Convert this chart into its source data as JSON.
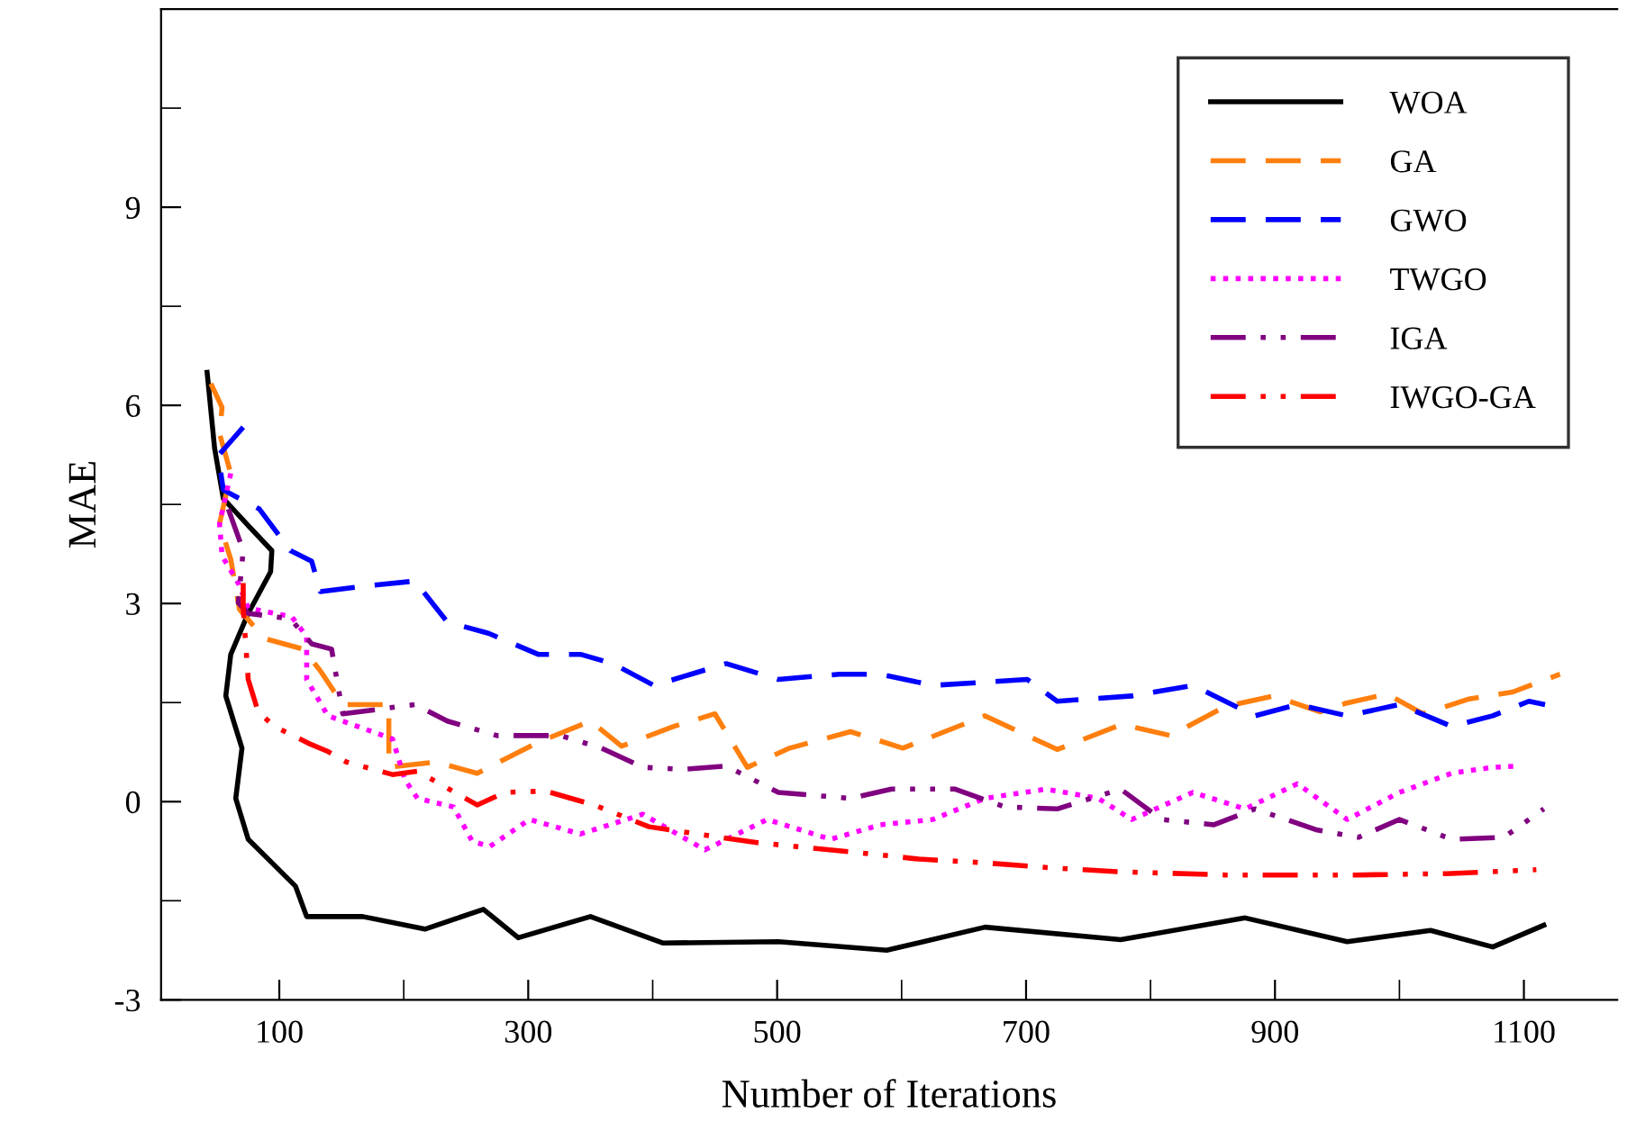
{
  "chart_data": {
    "type": "line",
    "xlabel": "Number of Iterations",
    "ylabel": "MAE",
    "xlim": [
      5,
      1175
    ],
    "ylim": [
      -3,
      12
    ],
    "xticks": [
      100,
      {
        "value": 200,
        "label": null
      },
      300,
      {
        "value": 400,
        "label": null
      },
      500,
      {
        "value": 600,
        "label": null
      },
      700,
      {
        "value": 800,
        "label": null
      },
      900,
      {
        "value": 1000,
        "label": null
      },
      1100
    ],
    "yticks": [
      -3,
      {
        "value": -1.5,
        "label": null
      },
      0,
      {
        "value": 1.5,
        "label": null
      },
      3,
      {
        "value": 4.5,
        "label": null
      },
      6,
      {
        "value": 7.5,
        "label": null
      },
      9,
      {
        "value": 10.5,
        "label": null
      }
    ],
    "grid": false,
    "legend": "top right",
    "marker": "none",
    "series": [
      {
        "name": "WOA",
        "color": "#000000",
        "line_style": "solid",
        "x": [
          42,
          48,
          55,
          75,
          94,
          93,
          75,
          61,
          57,
          70,
          65,
          75,
          97,
          113,
          122,
          167,
          217,
          264,
          292,
          350,
          408,
          501,
          588,
          667,
          776,
          876,
          958,
          1025,
          1075,
          1116
        ],
        "values": [
          6.5,
          5.35,
          4.59,
          4.18,
          3.8,
          3.48,
          2.85,
          2.23,
          1.6,
          0.81,
          0.05,
          -0.57,
          -0.98,
          -1.28,
          -1.74,
          -1.74,
          -1.93,
          -1.63,
          -2.06,
          -1.74,
          -2.14,
          -2.12,
          -2.25,
          -1.9,
          -2.09,
          -1.76,
          -2.12,
          -1.95,
          -2.2,
          -1.87
        ]
      },
      {
        "name": "GA",
        "color": "#ff7f0e",
        "line_style": "dashed",
        "x": [
          45,
          54,
          52,
          61,
          52,
          61,
          68,
          88,
          119,
          133,
          151,
          188,
          188,
          226,
          259,
          308,
          350,
          375,
          417,
          450,
          476,
          510,
          559,
          601,
          667,
          725,
          777,
          816,
          860,
          899,
          936,
          957,
          990,
          1019,
          1055,
          1091,
          1129
        ],
        "values": [
          6.33,
          5.97,
          5.57,
          4.97,
          4.21,
          3.67,
          2.91,
          2.47,
          2.31,
          1.98,
          1.47,
          1.47,
          0.52,
          0.6,
          0.43,
          0.9,
          1.22,
          0.84,
          1.14,
          1.33,
          0.52,
          0.81,
          1.06,
          0.81,
          1.3,
          0.79,
          1.17,
          1.0,
          1.44,
          1.6,
          1.36,
          1.49,
          1.63,
          1.33,
          1.55,
          1.66,
          1.93
        ]
      },
      {
        "name": "GWO",
        "color": "#0000ff",
        "line_style": "dashed",
        "x": [
          71,
          51,
          55,
          84,
          109,
          126,
          133,
          167,
          209,
          235,
          268,
          308,
          342,
          368,
          401,
          459,
          501,
          550,
          583,
          625,
          701,
          725,
          785,
          834,
          884,
          918,
          958,
          1000,
          1042,
          1075,
          1104,
          1117
        ],
        "values": [
          5.67,
          5.24,
          4.72,
          4.43,
          3.8,
          3.64,
          3.18,
          3.26,
          3.34,
          2.72,
          2.55,
          2.23,
          2.23,
          2.09,
          1.76,
          2.09,
          1.85,
          1.93,
          1.93,
          1.76,
          1.85,
          1.52,
          1.6,
          1.76,
          1.3,
          1.47,
          1.3,
          1.47,
          1.14,
          1.3,
          1.52,
          1.47
        ]
      },
      {
        "name": "TWGO",
        "color": "#ff00ff",
        "line_style": "dotted",
        "x": [
          61,
          52,
          54,
          67,
          75,
          110,
          122,
          122,
          139,
          191,
          201,
          211,
          240,
          255,
          269,
          301,
          342,
          392,
          442,
          492,
          543,
          583,
          625,
          667,
          716,
          758,
          785,
          834,
          876,
          918,
          958,
          1000,
          1042,
          1075,
          1096
        ],
        "values": [
          4.97,
          4.21,
          3.72,
          3.31,
          2.93,
          2.8,
          2.5,
          1.85,
          1.3,
          0.95,
          0.33,
          0.05,
          -0.08,
          -0.6,
          -0.68,
          -0.27,
          -0.49,
          -0.19,
          -0.73,
          -0.27,
          -0.57,
          -0.35,
          -0.27,
          0.05,
          0.19,
          0.05,
          -0.27,
          0.14,
          -0.11,
          0.27,
          -0.27,
          0.14,
          0.43,
          0.52,
          0.54
        ]
      },
      {
        "name": "IGA",
        "color": "#800080",
        "line_style": "dashdot",
        "x": [
          59,
          71,
          67,
          75,
          109,
          126,
          142,
          151,
          209,
          235,
          275,
          326,
          359,
          392,
          426,
          459,
          501,
          559,
          592,
          643,
          683,
          725,
          776,
          809,
          851,
          884,
          934,
          967,
          1000,
          1042,
          1084,
          1116
        ],
        "values": [
          4.43,
          3.8,
          3.01,
          2.85,
          2.77,
          2.39,
          2.31,
          1.33,
          1.47,
          1.22,
          1.0,
          1.0,
          0.81,
          0.52,
          0.49,
          0.54,
          0.14,
          0.05,
          0.19,
          0.19,
          -0.08,
          -0.11,
          0.19,
          -0.27,
          -0.35,
          -0.11,
          -0.43,
          -0.54,
          -0.27,
          -0.57,
          -0.54,
          -0.11
        ]
      },
      {
        "name": "IWGO-GA",
        "color": "#ff0000",
        "line_style": "dashdot",
        "x": [
          71,
          71,
          75,
          83,
          96,
          125,
          139,
          154,
          191,
          211,
          259,
          281,
          314,
          353,
          397,
          436,
          484,
          531,
          575,
          614,
          662,
          719,
          773,
          860,
          965,
          1038,
          1110
        ],
        "values": [
          3.31,
          2.93,
          1.85,
          1.36,
          1.14,
          0.87,
          0.76,
          0.6,
          0.41,
          0.46,
          -0.05,
          0.14,
          0.16,
          -0.05,
          -0.38,
          -0.49,
          -0.62,
          -0.71,
          -0.79,
          -0.87,
          -0.92,
          -1.0,
          -1.06,
          -1.11,
          -1.11,
          -1.09,
          -1.03
        ]
      }
    ]
  }
}
